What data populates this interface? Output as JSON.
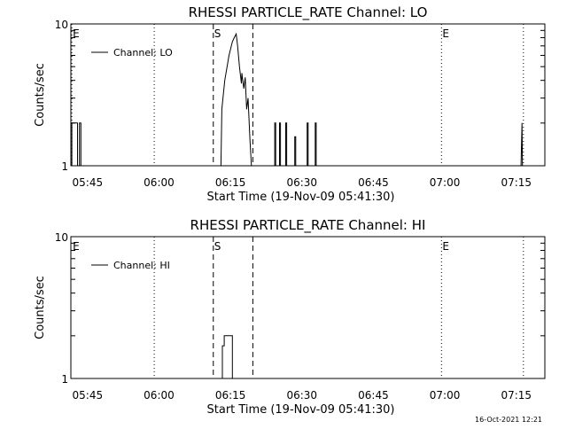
{
  "footer": {
    "timestamp": "16-Oct-2021 12:21"
  },
  "style": {
    "line_color": "#000000",
    "background": "#ffffff"
  },
  "chart_data": [
    {
      "type": "line",
      "title": "RHESSI PARTICLE_RATE Channel: LO",
      "xlabel": "Start Time (19-Nov-09 05:41:30)",
      "ylabel": "Counts/sec",
      "x_unit": "minutes since 05:41:30",
      "xlim": [
        0,
        99.5
      ],
      "ylim": [
        1,
        10
      ],
      "yscale": "log",
      "xticks": [
        3.5,
        18.5,
        33.5,
        48.5,
        63.5,
        78.5,
        93.5
      ],
      "xtick_labels": [
        "05:45",
        "06:00",
        "06:15",
        "06:30",
        "06:45",
        "07:00",
        "07:15"
      ],
      "yticks": [
        1,
        10
      ],
      "ytick_labels": [
        "1",
        "10"
      ],
      "legend": {
        "label": "Channel: LO",
        "position": "top-left"
      },
      "vlines_dotted": [
        0.2,
        17.5,
        77.8,
        95.0
      ],
      "vlines_dashed": [
        29.9,
        38.2
      ],
      "markers": [
        {
          "label": "E",
          "x": 0.2
        },
        {
          "label": "S",
          "x": 29.9
        },
        {
          "label": "E",
          "x": 77.8
        }
      ],
      "series": [
        {
          "name": "Channel: LO",
          "points": [
            [
              0.2,
              1
            ],
            [
              0.2,
              2
            ],
            [
              1.4,
              2
            ],
            [
              1.4,
              1
            ],
            [
              1.8,
              1
            ],
            [
              1.8,
              2
            ],
            [
              2.1,
              2
            ],
            [
              2.1,
              1
            ],
            [
              31.5,
              1
            ],
            [
              31.7,
              2.5
            ],
            [
              32.3,
              4
            ],
            [
              33.2,
              6
            ],
            [
              33.9,
              7.5
            ],
            [
              34.3,
              8
            ],
            [
              34.7,
              8.5
            ],
            [
              35.0,
              7
            ],
            [
              35.4,
              5
            ],
            [
              35.8,
              3.8
            ],
            [
              35.9,
              4.5
            ],
            [
              36.3,
              3.5
            ],
            [
              36.6,
              4.2
            ],
            [
              36.9,
              2.5
            ],
            [
              37.2,
              3
            ],
            [
              37.6,
              1.5
            ],
            [
              37.9,
              1
            ],
            [
              42.8,
              1
            ],
            [
              42.8,
              2
            ],
            [
              43.0,
              2
            ],
            [
              43.0,
              1
            ],
            [
              43.8,
              1
            ],
            [
              43.8,
              2
            ],
            [
              44.0,
              2
            ],
            [
              44.0,
              1
            ],
            [
              45.1,
              1
            ],
            [
              45.1,
              2
            ],
            [
              45.3,
              2
            ],
            [
              45.3,
              1
            ],
            [
              47.0,
              1
            ],
            [
              47.0,
              1.6
            ],
            [
              47.2,
              1.6
            ],
            [
              47.2,
              1
            ],
            [
              49.6,
              1
            ],
            [
              49.6,
              2
            ],
            [
              49.8,
              2
            ],
            [
              49.8,
              1
            ],
            [
              51.3,
              1
            ],
            [
              51.3,
              2
            ],
            [
              51.5,
              2
            ],
            [
              51.5,
              1
            ],
            [
              94.5,
              1
            ],
            [
              94.7,
              2
            ],
            [
              94.8,
              1
            ]
          ]
        }
      ]
    },
    {
      "type": "line",
      "title": "RHESSI PARTICLE_RATE Channel: HI",
      "xlabel": "Start Time (19-Nov-09 05:41:30)",
      "ylabel": "Counts/sec",
      "x_unit": "minutes since 05:41:30",
      "xlim": [
        0,
        99.5
      ],
      "ylim": [
        1,
        10
      ],
      "yscale": "log",
      "xticks": [
        3.5,
        18.5,
        33.5,
        48.5,
        63.5,
        78.5,
        93.5
      ],
      "xtick_labels": [
        "05:45",
        "06:00",
        "06:15",
        "06:30",
        "06:45",
        "07:00",
        "07:15"
      ],
      "yticks": [
        1,
        10
      ],
      "ytick_labels": [
        "1",
        "10"
      ],
      "legend": {
        "label": "Channel: HI",
        "position": "top-left"
      },
      "vlines_dotted": [
        17.5,
        77.8,
        95.0
      ],
      "vlines_dashed": [
        29.9,
        38.2
      ],
      "markers": [
        {
          "label": "E",
          "x": 0.2
        },
        {
          "label": "S",
          "x": 29.9
        },
        {
          "label": "E",
          "x": 77.8
        }
      ],
      "series": [
        {
          "name": "Channel: HI",
          "points": [
            [
              31.8,
              1
            ],
            [
              31.8,
              1.7
            ],
            [
              32.2,
              1.7
            ],
            [
              32.2,
              2
            ],
            [
              33.9,
              2
            ],
            [
              33.9,
              1
            ]
          ]
        }
      ]
    }
  ]
}
